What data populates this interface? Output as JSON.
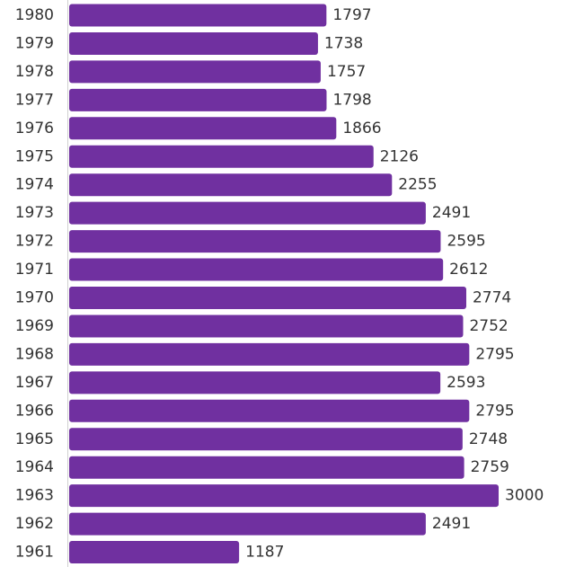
{
  "chart_data": {
    "type": "bar",
    "orientation": "horizontal",
    "color": "#7030a0",
    "categories": [
      "1980",
      "1979",
      "1978",
      "1977",
      "1976",
      "1975",
      "1974",
      "1973",
      "1972",
      "1971",
      "1970",
      "1969",
      "1968",
      "1967",
      "1966",
      "1965",
      "1964",
      "1963",
      "1962",
      "1961"
    ],
    "values": [
      1797,
      1738,
      1757,
      1798,
      1866,
      2126,
      2255,
      2491,
      2595,
      2612,
      2774,
      2752,
      2795,
      2593,
      2795,
      2748,
      2759,
      3000,
      2491,
      1187
    ]
  }
}
